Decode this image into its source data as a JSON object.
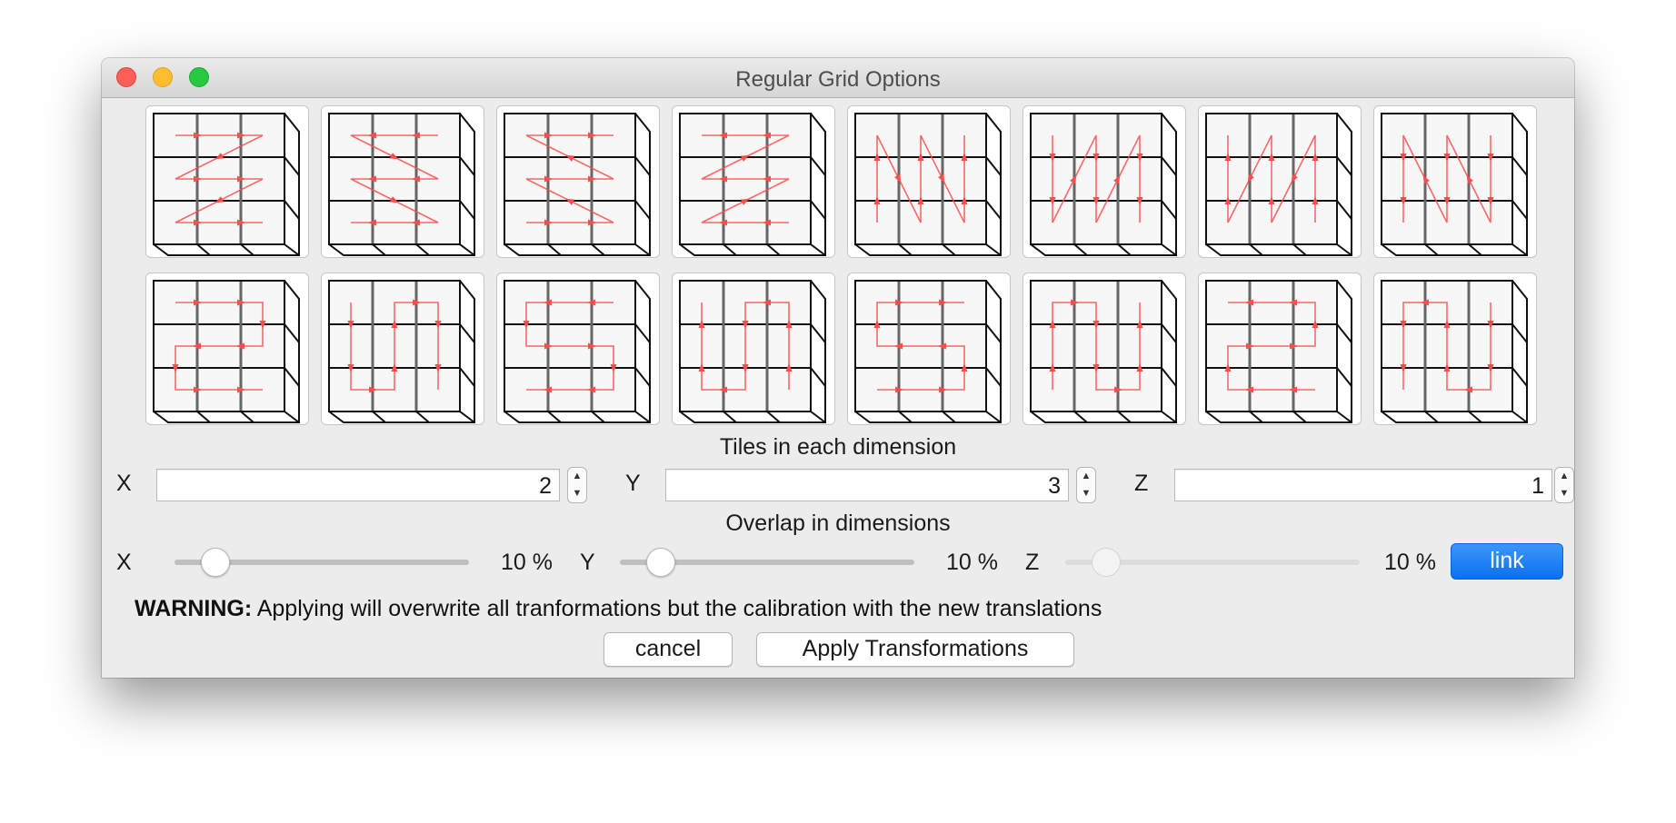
{
  "window": {
    "title": "Regular Grid Options"
  },
  "patterns": [
    {
      "name": "row-snake-1"
    },
    {
      "name": "row-snake-2"
    },
    {
      "name": "row-snake-3"
    },
    {
      "name": "row-snake-4"
    },
    {
      "name": "column-snake-1"
    },
    {
      "name": "column-snake-2"
    },
    {
      "name": "column-snake-3"
    },
    {
      "name": "column-snake-4"
    },
    {
      "name": "row-meander-1"
    },
    {
      "name": "column-meander-1"
    },
    {
      "name": "row-meander-2"
    },
    {
      "name": "column-meander-2"
    },
    {
      "name": "row-meander-3"
    },
    {
      "name": "column-meander-3"
    },
    {
      "name": "row-meander-4"
    },
    {
      "name": "column-meander-4"
    }
  ],
  "tiles": {
    "caption": "Tiles in each dimension",
    "x_label": "X",
    "x_value": "2",
    "y_label": "Y",
    "y_value": "3",
    "z_label": "Z",
    "z_value": "1"
  },
  "overlap": {
    "caption": "Overlap in dimensions",
    "x_label": "X",
    "x_value": "10 %",
    "x_level": 0.1,
    "y_label": "Y",
    "y_value": "10 %",
    "y_level": 0.1,
    "z_label": "Z",
    "z_value": "10 %",
    "z_level": 0.1,
    "link_label": "link"
  },
  "warning": {
    "prefix": "WARNING:",
    "text": " Applying will overwrite all tranformations but the calibration with the new translations"
  },
  "buttons": {
    "cancel": "cancel",
    "apply": "Apply Transformations"
  },
  "colors": {
    "path": "#ff4d4d",
    "link": "#1478f5"
  }
}
